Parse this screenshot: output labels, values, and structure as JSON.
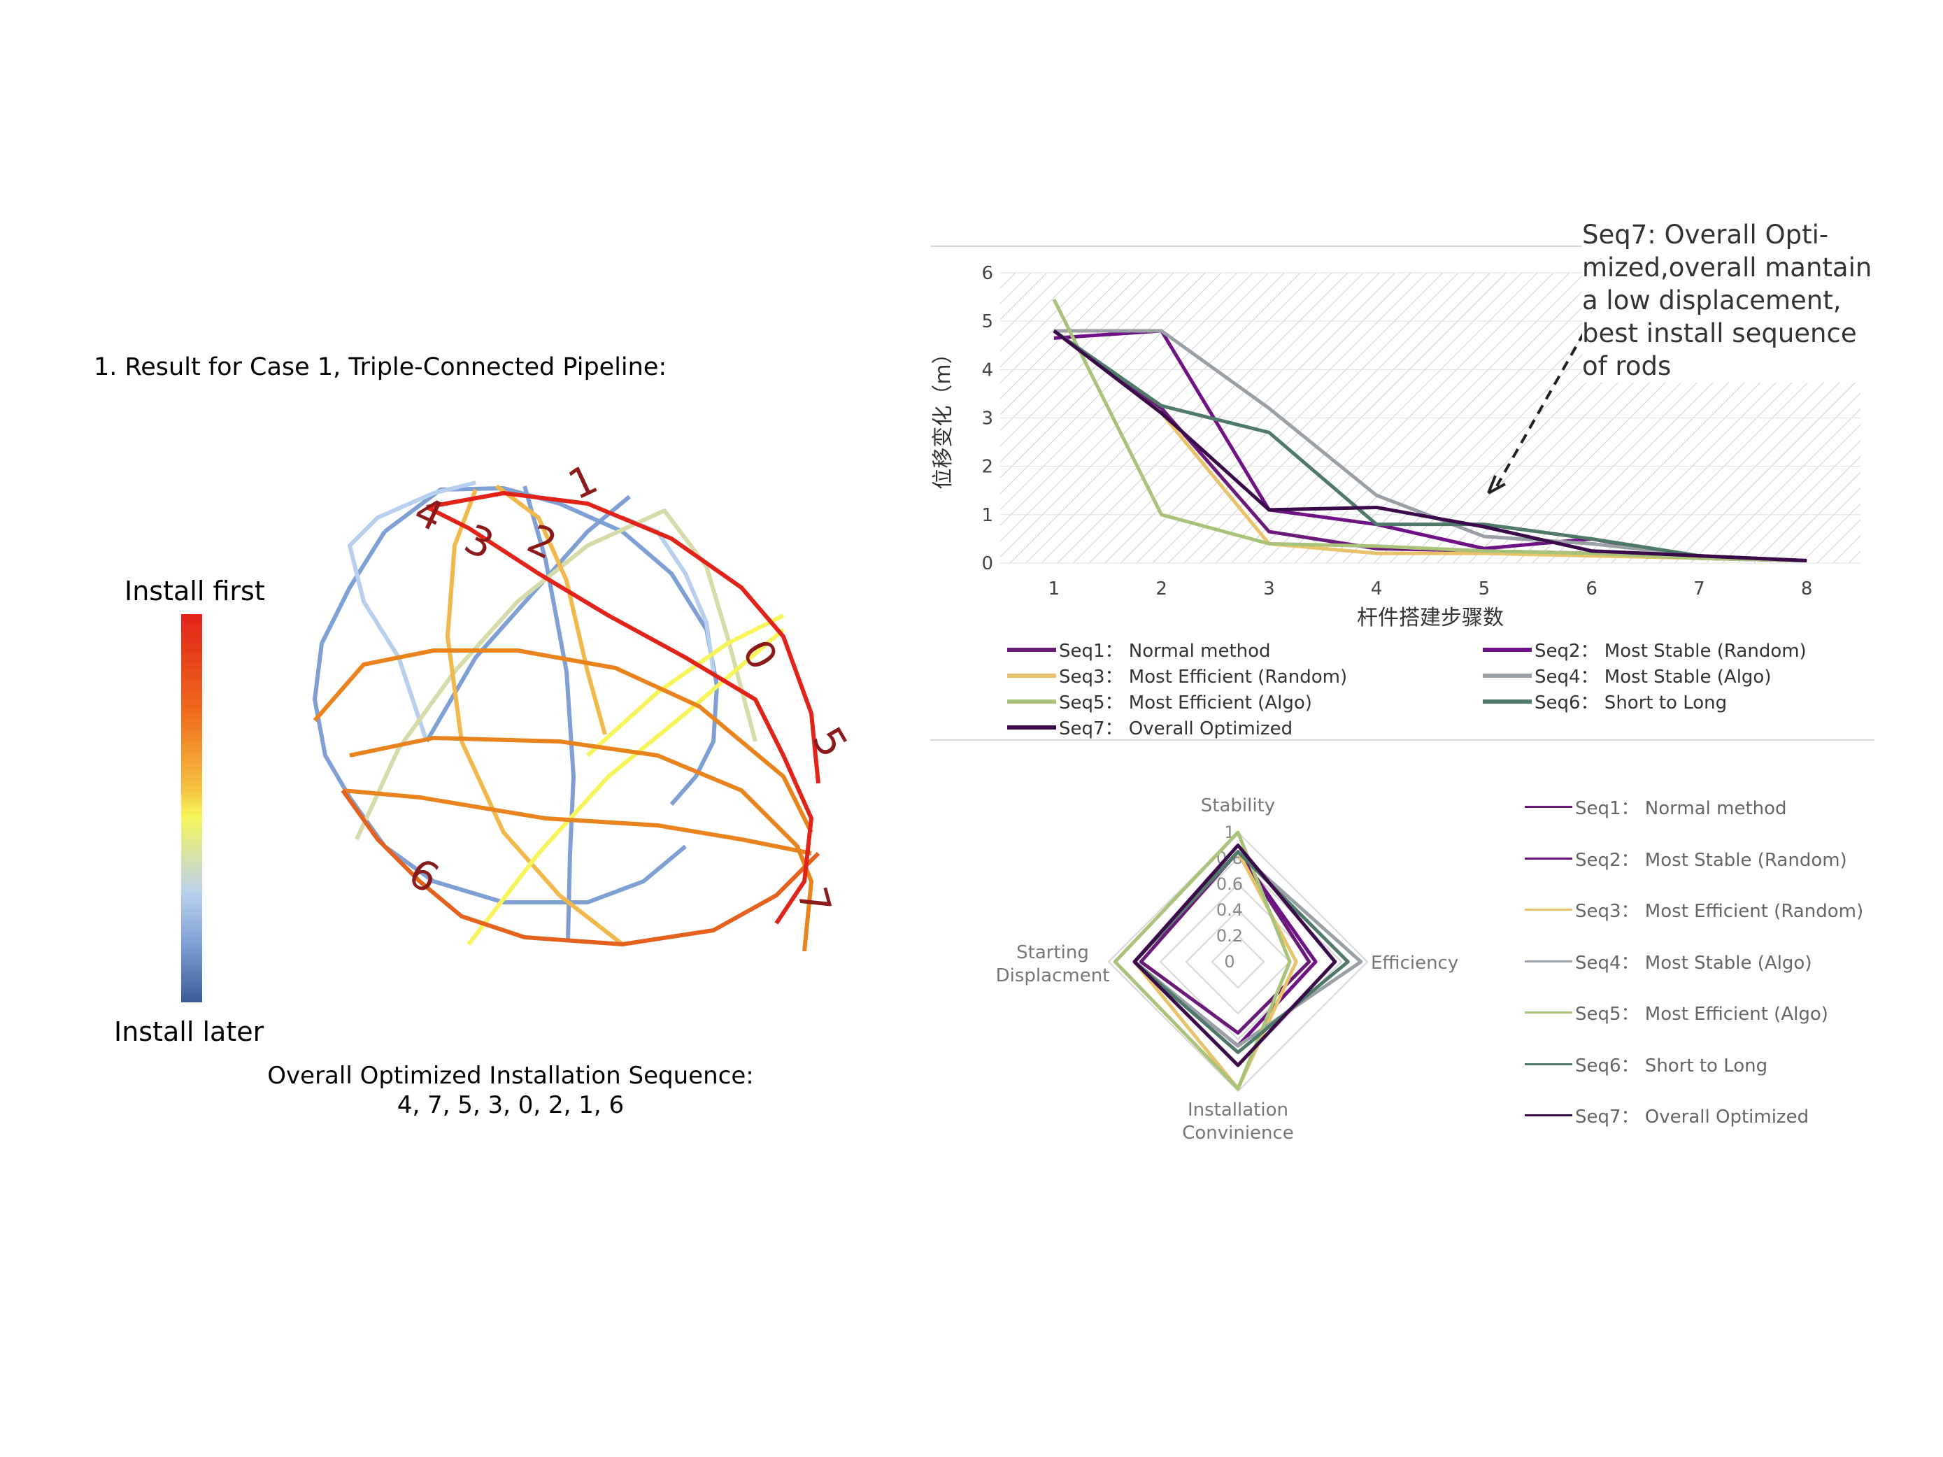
{
  "left": {
    "title": "1. Result for Case 1, Triple-Connected Pipeline:",
    "legend_top": "Install first",
    "legend_bottom": "Install later",
    "sequence_title": "Overall Optimized Installation Sequence:",
    "sequence_values": "4, 7, 5, 3, 0, 2, 1, 6",
    "rod_labels": [
      "1",
      "4",
      "3",
      "2",
      "0",
      "5",
      "6",
      "7"
    ]
  },
  "annotation": {
    "text": "Seq7: Overall Opti-mized,overall mantain a low displacement, best install sequence of rods"
  },
  "chart_data": [
    {
      "type": "line",
      "xlabel": "杆件搭建步骤数",
      "ylabel": "位移变化（m）",
      "x": [
        1,
        2,
        3,
        4,
        5,
        6,
        7,
        8
      ],
      "ylim": [
        0,
        6
      ],
      "yticks": [
        0,
        1,
        2,
        3,
        4,
        5,
        6
      ],
      "series": [
        {
          "name": "Seq1： Normal method",
          "color": "#6a1b7a",
          "values": [
            4.8,
            3.2,
            0.65,
            0.3,
            0.25,
            0.2,
            0.1,
            0.05
          ]
        },
        {
          "name": "Seq2： Most Stable (Random)",
          "color": "#6e1285",
          "values": [
            4.65,
            4.8,
            1.1,
            0.8,
            0.3,
            0.5,
            0.1,
            0.05
          ]
        },
        {
          "name": "Seq3： Most Efficient (Random)",
          "color": "#e8c36a",
          "values": [
            4.8,
            3.1,
            0.4,
            0.2,
            0.2,
            0.15,
            0.1,
            0.05
          ]
        },
        {
          "name": "Seq4： Most Stable (Algo)",
          "color": "#9aa0a6",
          "values": [
            4.8,
            4.8,
            3.2,
            1.4,
            0.55,
            0.4,
            0.15,
            0.05
          ]
        },
        {
          "name": "Seq5： Most Efficient (Algo)",
          "color": "#a9c47a",
          "values": [
            5.45,
            1.0,
            0.4,
            0.35,
            0.25,
            0.2,
            0.1,
            0.05
          ]
        },
        {
          "name": "Seq6： Short to Long",
          "color": "#4f7a6a",
          "values": [
            4.8,
            3.25,
            2.7,
            0.8,
            0.8,
            0.5,
            0.15,
            0.05
          ]
        },
        {
          "name": "Seq7： Overall Optimized",
          "color": "#3a0a4a",
          "values": [
            4.8,
            3.1,
            1.1,
            1.15,
            0.75,
            0.25,
            0.15,
            0.05
          ]
        }
      ],
      "grid": true,
      "legend": "bottom"
    },
    {
      "type": "radar",
      "axes": [
        "Stability",
        "Efficiency",
        "Installation Convinience",
        "Starting Displacment"
      ],
      "axis_labels": {
        "top": "Stability",
        "right": "Efficiency",
        "bottom_line1": "Installation",
        "bottom_line2": "Convinience",
        "left_line1": "Starting",
        "left_line2": "Displacment"
      },
      "ticks": [
        "0",
        "0.2",
        "0.4",
        "0.6",
        "0.8",
        "1"
      ],
      "range": [
        0,
        1
      ],
      "series": [
        {
          "name": "Seq1： Normal method",
          "color": "#6a1b7a",
          "values": [
            0.85,
            0.55,
            0.55,
            0.75
          ]
        },
        {
          "name": "Seq2： Most Stable (Random)",
          "color": "#6e1285",
          "values": [
            0.85,
            0.6,
            0.65,
            0.8
          ]
        },
        {
          "name": "Seq3： Most Efficient (Random)",
          "color": "#e8c36a",
          "values": [
            0.85,
            0.45,
            0.98,
            0.8
          ]
        },
        {
          "name": "Seq4： Most Stable (Algo)",
          "color": "#9aa0a6",
          "values": [
            0.85,
            0.95,
            0.65,
            0.8
          ]
        },
        {
          "name": "Seq5： Most Efficient (Algo)",
          "color": "#a9c47a",
          "values": [
            1.0,
            0.4,
            0.98,
            0.95
          ]
        },
        {
          "name": "Seq6： Short to Long",
          "color": "#4f7a6a",
          "values": [
            0.85,
            0.85,
            0.7,
            0.8
          ]
        },
        {
          "name": "Seq7： Overall Optimized",
          "color": "#3a0a4a",
          "values": [
            0.9,
            0.75,
            0.8,
            0.8
          ]
        }
      ],
      "legend": "right"
    }
  ]
}
